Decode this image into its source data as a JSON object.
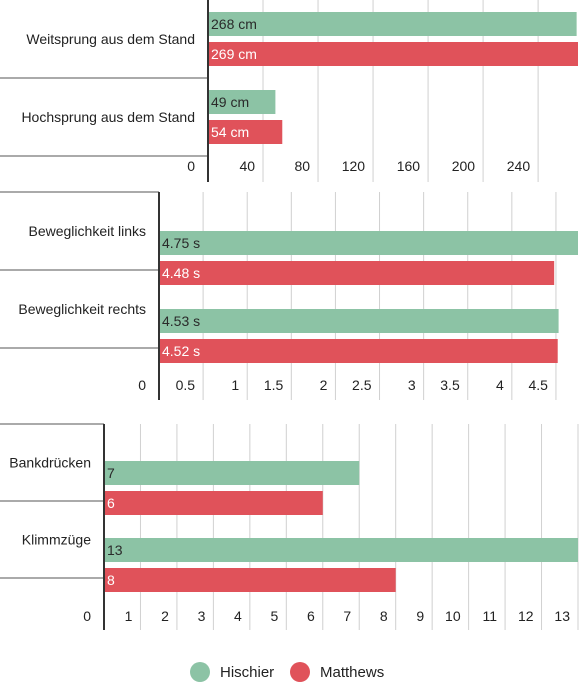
{
  "colors": {
    "Hischier": "#8cc3a5",
    "Matthews": "#e0525a"
  },
  "legend": [
    {
      "name": "Hischier",
      "color": "#8cc3a5"
    },
    {
      "name": "Matthews",
      "color": "#e0525a"
    }
  ],
  "chart_data": [
    {
      "type": "bar",
      "orientation": "horizontal",
      "categories": [
        "Weitsprung aus dem Stand",
        "Hochsprung aus dem Stand"
      ],
      "series": [
        {
          "name": "Hischier",
          "values": [
            268,
            49
          ],
          "labels": [
            "268 cm",
            "49 cm"
          ]
        },
        {
          "name": "Matthews",
          "values": [
            269,
            54
          ],
          "labels": [
            "269 cm",
            "54 cm"
          ]
        }
      ],
      "xticks": [
        0,
        40,
        80,
        120,
        160,
        200,
        240
      ],
      "xtick_labels": [
        "0",
        "40",
        "80",
        "120",
        "160",
        "200",
        "240"
      ],
      "xlim": [
        0,
        269
      ],
      "grid": true
    },
    {
      "type": "bar",
      "orientation": "horizontal",
      "categories": [
        "Beweglichkeit links",
        "Beweglichkeit rechts"
      ],
      "series": [
        {
          "name": "Hischier",
          "values": [
            4.75,
            4.53
          ],
          "labels": [
            "4.75 s",
            "4.53 s"
          ]
        },
        {
          "name": "Matthews",
          "values": [
            4.48,
            4.52
          ],
          "labels": [
            "4.48 s",
            "4.52 s"
          ]
        }
      ],
      "xticks": [
        0,
        0.5,
        1,
        1.5,
        2,
        2.5,
        3,
        3.5,
        4,
        4.5
      ],
      "xtick_labels": [
        "0",
        "0.5",
        "1",
        "1.5",
        "2",
        "2.5",
        "3",
        "3.5",
        "4",
        "4.5"
      ],
      "xlim": [
        0,
        4.75
      ],
      "grid": true
    },
    {
      "type": "bar",
      "orientation": "horizontal",
      "categories": [
        "Bankdrücken",
        "Klimmzüge"
      ],
      "series": [
        {
          "name": "Hischier",
          "values": [
            7,
            13
          ],
          "labels": [
            "7",
            "13"
          ]
        },
        {
          "name": "Matthews",
          "values": [
            6,
            8
          ],
          "labels": [
            "6",
            "8"
          ]
        }
      ],
      "xticks": [
        0,
        1,
        2,
        3,
        4,
        5,
        6,
        7,
        8,
        9,
        10,
        11,
        12,
        13
      ],
      "xtick_labels": [
        "0",
        "1",
        "2",
        "3",
        "4",
        "5",
        "6",
        "7",
        "8",
        "9",
        "10",
        "11",
        "12",
        "13"
      ],
      "xlim": [
        0,
        13
      ],
      "grid": true
    }
  ]
}
